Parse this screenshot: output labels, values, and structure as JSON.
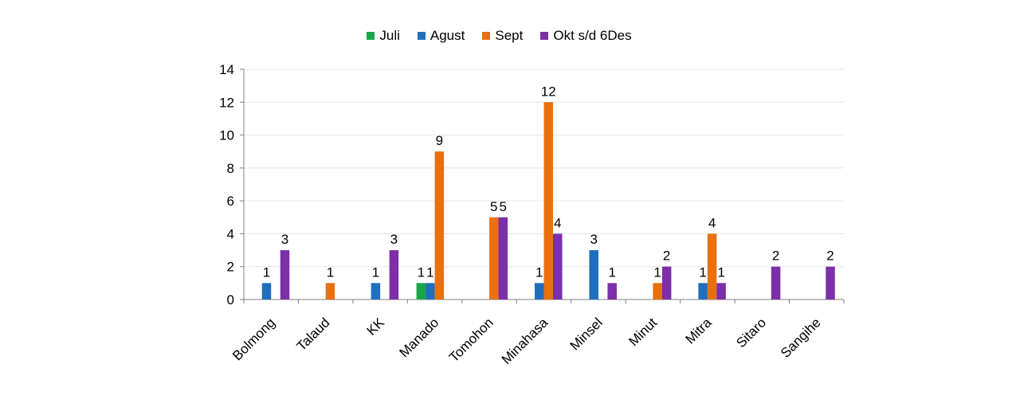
{
  "chart_data": {
    "type": "bar",
    "categories": [
      "Bolmong",
      "Talaud",
      "KK",
      "Manado",
      "Tomohon",
      "Minahasa",
      "Minsel",
      "Minut",
      "Mitra",
      "Sitaro",
      "Sangihe"
    ],
    "series": [
      {
        "name": "Juli",
        "color": "#1aa64a",
        "values": [
          null,
          null,
          null,
          1,
          null,
          null,
          null,
          null,
          null,
          null,
          null
        ]
      },
      {
        "name": "Agust",
        "color": "#1f6fbf",
        "values": [
          1,
          null,
          1,
          1,
          null,
          1,
          3,
          null,
          1,
          null,
          null
        ]
      },
      {
        "name": "Sept",
        "color": "#e8700f",
        "values": [
          null,
          1,
          null,
          9,
          5,
          12,
          null,
          1,
          4,
          null,
          null
        ]
      },
      {
        "name": "Okt s/d 6Des",
        "color": "#7b2fa8",
        "values": [
          3,
          null,
          3,
          null,
          5,
          4,
          1,
          2,
          1,
          2,
          2
        ]
      }
    ],
    "ylim": [
      0,
      14
    ],
    "yticks": [
      0,
      2,
      4,
      6,
      8,
      10,
      12,
      14
    ],
    "grid": true,
    "legend_position": "top"
  }
}
